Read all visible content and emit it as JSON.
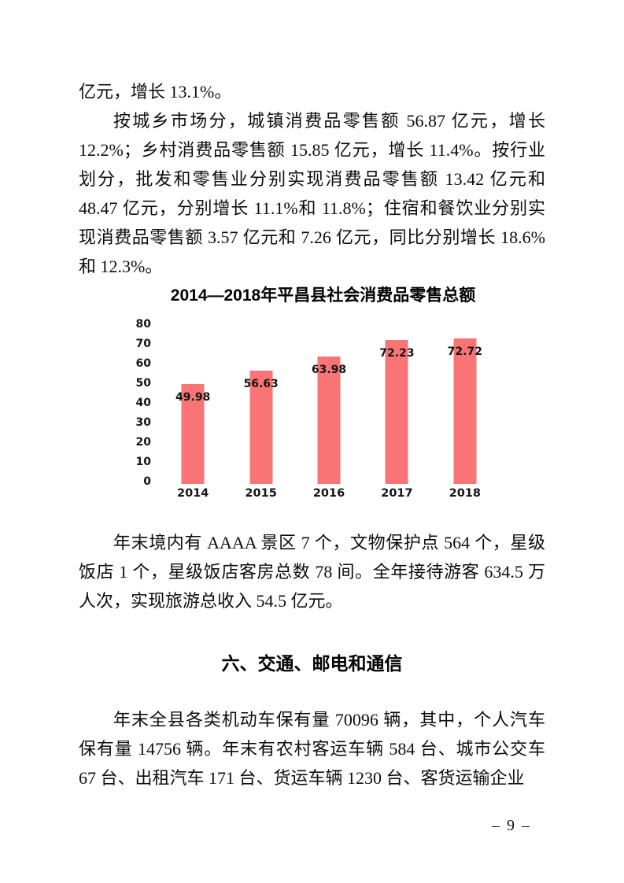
{
  "document": {
    "paragraphs": {
      "retail_growth_tail": "亿元，增长 13.1%。",
      "retail_breakdown": "按城乡市场分，城镇消费品零售额 56.87 亿元，增长 12.2%；乡村消费品零售额 15.85 亿元，增长 11.4%。按行业划分，批发和零售业分别实现消费品零售额 13.42 亿元和 48.47 亿元，分别增长 11.1%和 11.8%；住宿和餐饮业分别实现消费品零售额 3.57 亿元和 7.26 亿元，同比分别增长 18.6%和 12.3%。",
      "tourism": "年末境内有 AAAA 景区 7 个，文物保护点 564 个，星级饭店 1 个，星级饭店客房总数 78 间。全年接待游客 634.5 万人次，实现旅游总收入 54.5 亿元。",
      "transport_intro": "年末全县各类机动车保有量 70096 辆，其中，个人汽车保有量 14756 辆。年末有农村客运车辆 584 台、城市公交车 67 台、出租汽车 171 台、货运车辆 1230 台、客货运输企业"
    },
    "section_heading": "六、交通、邮电和通信",
    "page_number": "– 9 –"
  },
  "chart_data": {
    "type": "bar",
    "title": "2014—2018年平昌县社会消费品零售总额",
    "categories": [
      "2014",
      "2015",
      "2016",
      "2017",
      "2018"
    ],
    "values": [
      49.98,
      56.63,
      63.98,
      72.23,
      72.72
    ],
    "ylim": [
      0,
      80
    ],
    "yticks": [
      0,
      10,
      20,
      30,
      40,
      50,
      60,
      70,
      80
    ],
    "xlabel": "",
    "ylabel": "",
    "grid": false,
    "legend": false,
    "data_label_position": "inside-end",
    "bar_color": "#F97575",
    "label_color": "#151515"
  }
}
